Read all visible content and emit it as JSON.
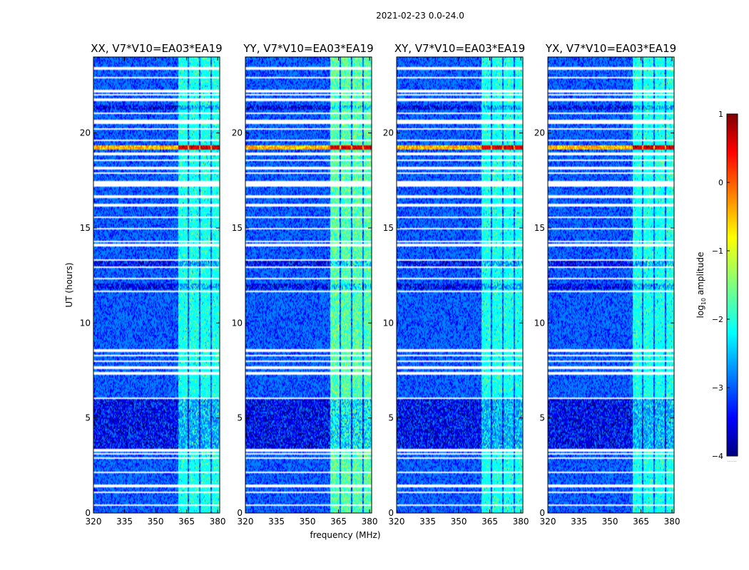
{
  "figure_title": "2021-02-23 0.0-24.0",
  "colors": {
    "jet": [
      "#00007f",
      "#0000ff",
      "#007fff",
      "#00ffff",
      "#7fff7f",
      "#ffff00",
      "#ff7f00",
      "#ff0000",
      "#7f0000"
    ],
    "flag": "#ffffff",
    "dark": "#000044"
  },
  "chart_data": {
    "type": "heatmap",
    "xlabel": "frequency (MHz)",
    "ylabel": "UT (hours)",
    "xlim": [
      320,
      381
    ],
    "ylim": [
      0,
      24
    ],
    "x_ticks": [
      320,
      335,
      350,
      365,
      380
    ],
    "y_ticks": [
      0,
      5,
      10,
      15,
      20
    ],
    "panels": [
      {
        "title": "XX, V7*V10=EA03*EA19",
        "show_ylabel": true,
        "sideband_level": "medium"
      },
      {
        "title": "YY, V7*V10=EA03*EA19",
        "show_ylabel": false,
        "sideband_level": "high"
      },
      {
        "title": "XY, V7*V10=EA03*EA19",
        "show_ylabel": false,
        "sideband_level": "medium"
      },
      {
        "title": "YX, V7*V10=EA03*EA19",
        "show_ylabel": false,
        "sideband_level": "medium"
      }
    ],
    "signal_band_mhz": [
      361,
      381
    ],
    "signal_band_gaps_mhz": [
      [
        365.2,
        366.0
      ],
      [
        370.8,
        371.6
      ],
      [
        376.4,
        377.2
      ]
    ],
    "flagged_hours": [
      [
        0.35,
        0.45
      ],
      [
        1.05,
        1.15
      ],
      [
        1.35,
        1.5
      ],
      [
        2.1,
        2.2
      ],
      [
        2.85,
        2.95
      ],
      [
        3.05,
        3.15
      ],
      [
        3.25,
        3.35
      ],
      [
        6.0,
        6.1
      ],
      [
        7.3,
        7.4
      ],
      [
        7.6,
        7.7
      ],
      [
        7.95,
        8.05
      ],
      [
        8.25,
        8.35
      ],
      [
        8.5,
        8.6
      ],
      [
        11.6,
        11.7
      ],
      [
        12.3,
        12.4
      ],
      [
        12.9,
        13.0
      ],
      [
        13.25,
        13.35
      ],
      [
        14.05,
        14.15
      ],
      [
        14.25,
        14.35
      ],
      [
        14.9,
        15.0
      ],
      [
        15.5,
        15.6
      ],
      [
        16.15,
        16.25
      ],
      [
        16.6,
        16.7
      ],
      [
        17.2,
        17.5
      ],
      [
        17.85,
        17.95
      ],
      [
        18.1,
        18.2
      ],
      [
        18.5,
        18.6
      ],
      [
        18.85,
        18.95
      ],
      [
        19.55,
        19.65
      ],
      [
        20.15,
        20.25
      ],
      [
        20.5,
        20.7
      ],
      [
        21.0,
        21.1
      ],
      [
        21.7,
        21.8
      ],
      [
        21.95,
        22.05
      ],
      [
        22.15,
        22.25
      ],
      [
        22.85,
        22.95
      ],
      [
        23.35,
        23.5
      ]
    ],
    "dark_hours": [
      [
        3.4,
        6.1
      ],
      [
        11.75,
        12.1
      ],
      [
        13.0,
        13.25
      ],
      [
        21.2,
        21.45
      ]
    ],
    "bright_hours": [
      [
        19.1,
        19.35
      ]
    ],
    "colorbar": {
      "label": "log10 amplitude",
      "label_main": "log",
      "label_sub": "10",
      "label_rest": " amplitude",
      "ticks": [
        "1",
        "0",
        "−1",
        "−2",
        "−3",
        "−4"
      ],
      "tick_values": [
        1,
        0,
        -1,
        -2,
        -3,
        -4
      ],
      "range": [
        -4,
        1
      ],
      "caption": "......"
    }
  }
}
